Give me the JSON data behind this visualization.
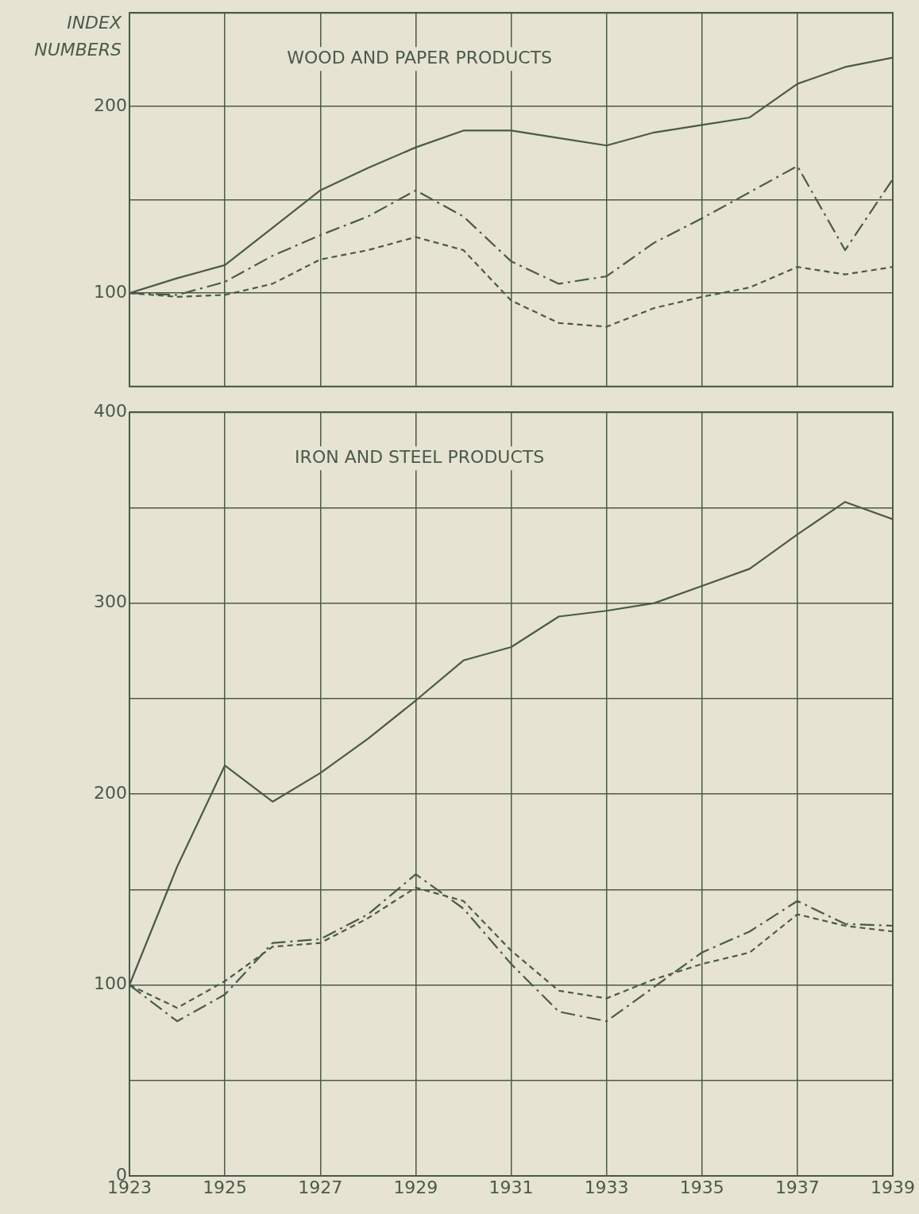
{
  "chart_data": [
    {
      "type": "line",
      "title": "WOOD AND PAPER PRODUCTS",
      "ylabel": "INDEX NUMBERS",
      "x": [
        1923,
        1924,
        1925,
        1926,
        1927,
        1928,
        1929,
        1930,
        1931,
        1932,
        1933,
        1934,
        1935,
        1936,
        1937,
        1938,
        1939
      ],
      "series": [
        {
          "color": "#4a5a48",
          "line_style": "solid",
          "values": [
            100,
            108,
            115,
            135,
            155,
            167,
            178,
            187,
            187,
            183,
            179,
            186,
            190,
            194,
            212,
            221,
            226
          ]
        },
        {
          "color": "#4a5a48",
          "line_style": "dashed",
          "values": [
            100,
            99,
            106,
            120,
            131,
            141,
            155,
            141,
            117,
            105,
            109,
            127,
            140,
            154,
            168,
            123,
            161
          ]
        },
        {
          "color": "#4a5a48",
          "line_style": "dotted",
          "values": [
            100,
            98,
            99,
            105,
            118,
            123,
            130,
            123,
            96,
            84,
            82,
            92,
            98,
            103,
            114,
            110,
            114
          ]
        }
      ],
      "xlim": [
        1923,
        1939
      ],
      "xticks": [
        1923,
        1925,
        1927,
        1929,
        1931,
        1933,
        1935,
        1937,
        1939
      ],
      "ylim": [
        50,
        250
      ],
      "yticks": [
        {
          "value": 50,
          "label": null
        },
        100,
        {
          "value": 150,
          "label": null
        },
        200,
        {
          "value": 250,
          "label": null
        }
      ],
      "grid": true,
      "legend": false,
      "marker": "none",
      "tick_labels": "y"
    },
    {
      "type": "line",
      "title": "IRON AND STEEL PRODUCTS",
      "x": [
        1923,
        1924,
        1925,
        1926,
        1927,
        1928,
        1929,
        1930,
        1931,
        1932,
        1933,
        1934,
        1935,
        1936,
        1937,
        1938,
        1939
      ],
      "series": [
        {
          "color": "#4a5a48",
          "line_style": "solid",
          "values": [
            100,
            162,
            215,
            196,
            211,
            229,
            249,
            270,
            277,
            293,
            296,
            300,
            309,
            318,
            336,
            353,
            344
          ]
        },
        {
          "color": "#4a5a48",
          "line_style": "dashed",
          "values": [
            100,
            81,
            95,
            122,
            124,
            137,
            158,
            140,
            111,
            86,
            81,
            99,
            117,
            128,
            144,
            132,
            131
          ]
        },
        {
          "color": "#4a5a48",
          "line_style": "dotted",
          "values": [
            100,
            88,
            102,
            120,
            122,
            135,
            151,
            144,
            118,
            97,
            93,
            103,
            111,
            117,
            137,
            131,
            128
          ]
        }
      ],
      "xlim": [
        1923,
        1939
      ],
      "xticks": [
        1923,
        1925,
        1927,
        1929,
        1931,
        1933,
        1935,
        1937,
        1939
      ],
      "ylim": [
        0,
        400
      ],
      "yticks": [
        0,
        {
          "value": 50,
          "label": null
        },
        100,
        {
          "value": 150,
          "label": null
        },
        200,
        {
          "value": 250,
          "label": null
        },
        300,
        {
          "value": 350,
          "label": null
        },
        400
      ],
      "grid": true,
      "legend": false,
      "marker": "none"
    }
  ]
}
